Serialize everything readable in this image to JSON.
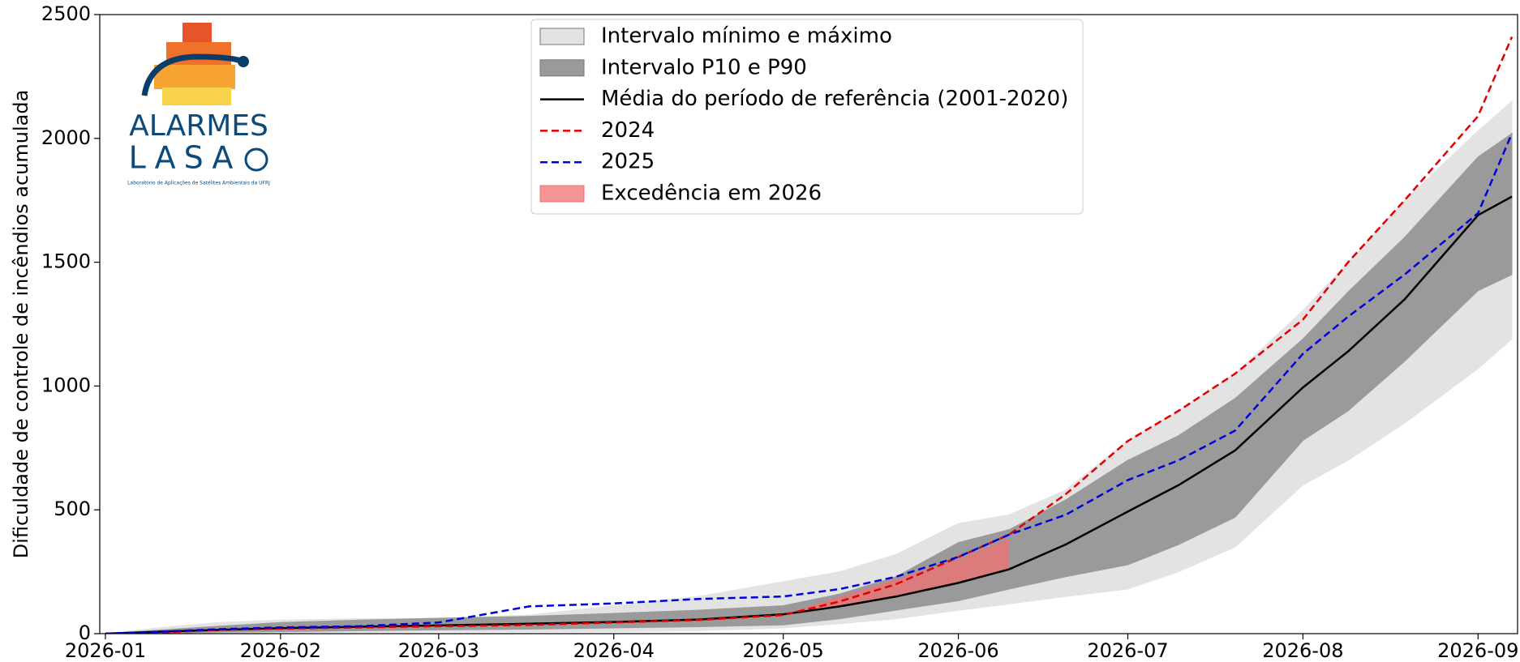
{
  "chart_data": {
    "type": "line",
    "ylabel": "Dificuldade de controle de incêndios acumulada",
    "x": [
      0,
      10,
      20,
      31,
      45,
      59,
      75,
      90,
      105,
      120,
      130,
      140,
      151,
      160,
      170,
      181,
      190,
      200,
      212,
      220,
      230,
      243,
      249
    ],
    "xlim": [
      -1,
      250
    ],
    "xticks": [
      {
        "value": 0,
        "label": "2026-01"
      },
      {
        "value": 31,
        "label": "2026-02"
      },
      {
        "value": 59,
        "label": "2026-03"
      },
      {
        "value": 90,
        "label": "2026-04"
      },
      {
        "value": 120,
        "label": "2026-05"
      },
      {
        "value": 151,
        "label": "2026-06"
      },
      {
        "value": 181,
        "label": "2026-07"
      },
      {
        "value": 212,
        "label": "2026-08"
      },
      {
        "value": 243,
        "label": "2026-09"
      }
    ],
    "ylim": [
      0,
      2500
    ],
    "yticks": [
      0,
      500,
      1000,
      1500,
      2000,
      2500
    ],
    "legend": "upper center",
    "series": [
      {
        "name": "Intervalo mínimo e máximo",
        "kind": "band",
        "color": "#e3e3e3",
        "lower": [
          0,
          1,
          2,
          4,
          6,
          8,
          8,
          8,
          12,
          23,
          40,
          60,
          94,
          120,
          150,
          180,
          250,
          350,
          600,
          700,
          850,
          1070,
          1190
        ],
        "upper": [
          0,
          25,
          45,
          55,
          60,
          62,
          75,
          113,
          150,
          210,
          250,
          320,
          445,
          480,
          580,
          780,
          900,
          1050,
          1305,
          1500,
          1750,
          2030,
          2150
        ]
      },
      {
        "name": "Intervalo P10 e P90",
        "kind": "band",
        "color": "#9a9a9a",
        "lower": [
          0,
          3,
          6,
          8,
          12,
          15,
          18,
          23,
          28,
          35,
          60,
          95,
          133,
          180,
          230,
          278,
          360,
          470,
          780,
          900,
          1100,
          1385,
          1450
        ],
        "upper": [
          0,
          15,
          30,
          45,
          55,
          62,
          70,
          82,
          95,
          113,
          160,
          230,
          368,
          420,
          540,
          700,
          800,
          950,
          1190,
          1380,
          1600,
          1925,
          2020
        ]
      },
      {
        "name": "Média do período de referência (2001-2020)",
        "kind": "line",
        "linestyle": "solid",
        "color": "#000000",
        "values": [
          0,
          8,
          15,
          22,
          28,
          33,
          40,
          47,
          57,
          78,
          110,
          150,
          205,
          260,
          360,
          493,
          600,
          740,
          994,
          1140,
          1350,
          1690,
          1765
        ]
      },
      {
        "name": "2024",
        "kind": "line",
        "linestyle": "dashed",
        "color": "#e00000",
        "values": [
          0,
          5,
          15,
          20,
          25,
          30,
          35,
          45,
          55,
          75,
          130,
          200,
          309,
          400,
          563,
          778,
          900,
          1050,
          1268,
          1500,
          1750,
          2090,
          2410
        ]
      },
      {
        "name": "2025",
        "kind": "line",
        "linestyle": "dashed",
        "color": "#0000dd",
        "values": [
          0,
          8,
          18,
          25,
          30,
          45,
          110,
          122,
          140,
          150,
          180,
          230,
          310,
          400,
          480,
          620,
          700,
          820,
          1130,
          1280,
          1450,
          1698,
          2020
        ]
      },
      {
        "name": "Excedência em 2026",
        "kind": "fill",
        "color": "#f07070",
        "values": [
          null,
          null,
          null,
          null,
          null,
          null,
          null,
          null,
          null,
          78,
          150,
          220,
          300,
          385,
          null,
          null,
          null,
          null,
          null,
          null,
          null,
          null,
          null
        ]
      }
    ]
  },
  "logo": {
    "title": "ALARMES",
    "subtitle": "LASA",
    "caption": "Laboratório de Aplicações de Satélites Ambientais da UFRJ"
  }
}
